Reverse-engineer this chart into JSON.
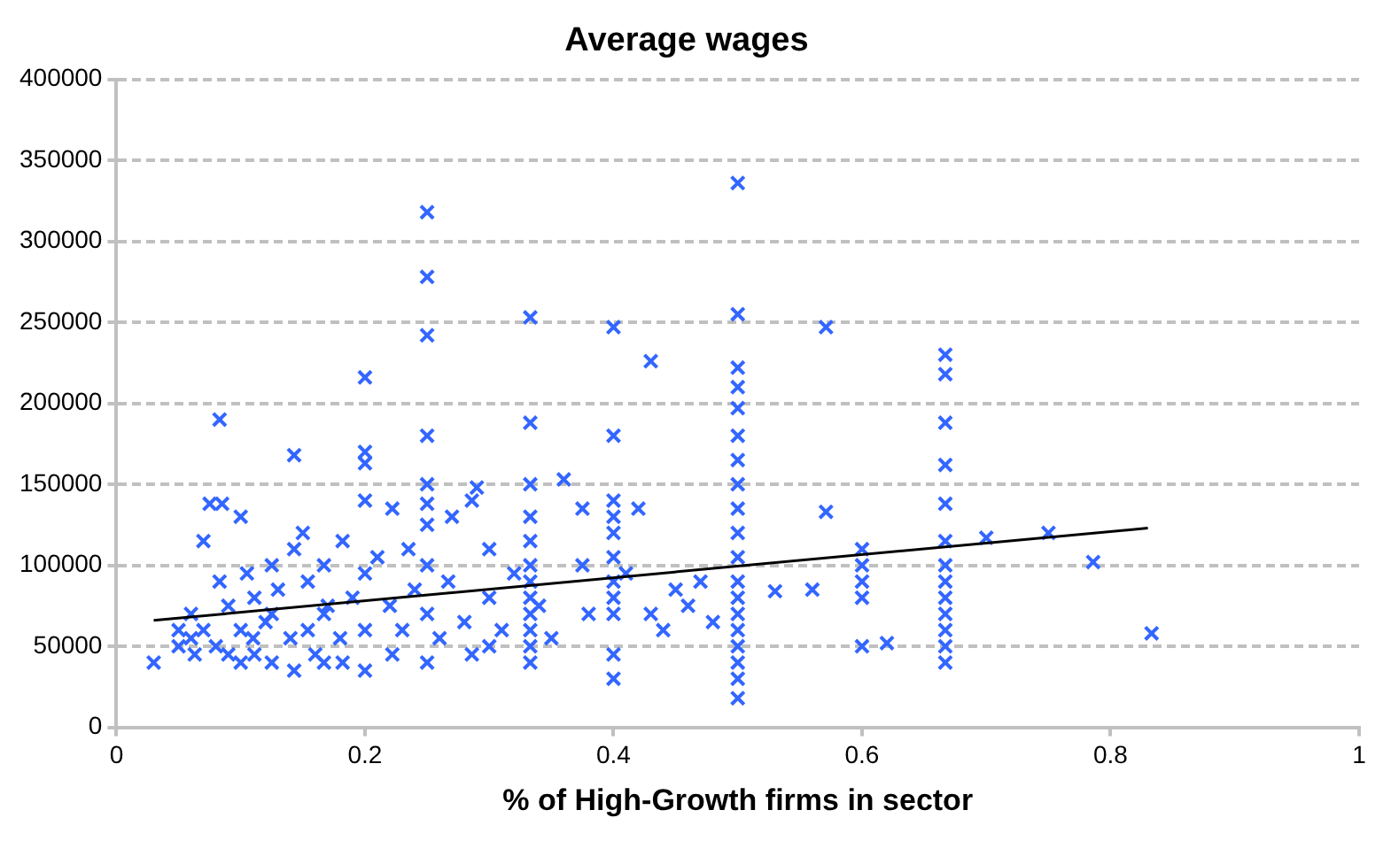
{
  "chart_data": {
    "type": "scatter",
    "title": "Average wages",
    "xlabel": "% of High-Growth firms in sector",
    "xlim": [
      0,
      1
    ],
    "xticks": [
      0,
      0.2,
      0.4,
      0.6,
      0.8,
      1
    ],
    "ylim": [
      0,
      400000
    ],
    "yticks": [
      0,
      50000,
      100000,
      150000,
      200000,
      250000,
      300000,
      350000,
      400000
    ],
    "grid": "y",
    "legend": false,
    "marker": "cross",
    "series": [
      {
        "color": "#3366ff",
        "x": [
          0.03,
          0.05,
          0.05,
          0.06,
          0.06,
          0.063,
          0.07,
          0.07,
          0.075,
          0.083,
          0.085,
          0.083,
          0.08,
          0.09,
          0.09,
          0.1,
          0.1,
          0.1,
          0.105,
          0.11,
          0.111,
          0.111,
          0.12,
          0.125,
          0.125,
          0.125,
          0.13,
          0.14,
          0.143,
          0.143,
          0.143,
          0.15,
          0.154,
          0.154,
          0.16,
          0.167,
          0.167,
          0.167,
          0.17,
          0.18,
          0.182,
          0.182,
          0.19,
          0.2,
          0.2,
          0.2,
          0.2,
          0.2,
          0.2,
          0.2,
          0.21,
          0.22,
          0.222,
          0.222,
          0.23,
          0.235,
          0.24,
          0.25,
          0.25,
          0.25,
          0.25,
          0.25,
          0.25,
          0.25,
          0.25,
          0.25,
          0.25,
          0.26,
          0.267,
          0.27,
          0.28,
          0.286,
          0.286,
          0.29,
          0.3,
          0.3,
          0.3,
          0.31,
          0.32,
          0.333,
          0.333,
          0.333,
          0.333,
          0.333,
          0.333,
          0.333,
          0.333,
          0.333,
          0.333,
          0.333,
          0.333,
          0.34,
          0.35,
          0.36,
          0.375,
          0.375,
          0.38,
          0.4,
          0.4,
          0.4,
          0.4,
          0.4,
          0.4,
          0.4,
          0.4,
          0.4,
          0.4,
          0.4,
          0.41,
          0.42,
          0.43,
          0.43,
          0.44,
          0.45,
          0.46,
          0.47,
          0.48,
          0.5,
          0.5,
          0.5,
          0.5,
          0.5,
          0.5,
          0.5,
          0.5,
          0.5,
          0.5,
          0.5,
          0.5,
          0.5,
          0.5,
          0.5,
          0.5,
          0.5,
          0.5,
          0.5,
          0.53,
          0.56,
          0.571,
          0.571,
          0.6,
          0.6,
          0.6,
          0.6,
          0.6,
          0.62,
          0.667,
          0.667,
          0.667,
          0.667,
          0.667,
          0.667,
          0.667,
          0.667,
          0.667,
          0.667,
          0.667,
          0.667,
          0.667,
          0.7,
          0.75,
          0.786,
          0.833
        ],
        "values": [
          40000,
          60000,
          50000,
          55000,
          70000,
          45000,
          115000,
          60000,
          138000,
          190000,
          138000,
          90000,
          50000,
          75000,
          45000,
          60000,
          130000,
          40000,
          95000,
          55000,
          80000,
          45000,
          65000,
          100000,
          70000,
          40000,
          85000,
          55000,
          168000,
          110000,
          35000,
          120000,
          60000,
          90000,
          45000,
          100000,
          70000,
          40000,
          75000,
          55000,
          115000,
          40000,
          80000,
          216000,
          170000,
          163000,
          140000,
          95000,
          60000,
          35000,
          105000,
          75000,
          135000,
          45000,
          60000,
          110000,
          85000,
          318000,
          278000,
          242000,
          180000,
          150000,
          138000,
          125000,
          100000,
          70000,
          40000,
          55000,
          90000,
          130000,
          65000,
          140000,
          45000,
          148000,
          110000,
          80000,
          50000,
          60000,
          95000,
          253000,
          188000,
          150000,
          130000,
          115000,
          100000,
          90000,
          80000,
          70000,
          60000,
          50000,
          40000,
          75000,
          55000,
          153000,
          135000,
          100000,
          70000,
          247000,
          180000,
          140000,
          130000,
          120000,
          105000,
          90000,
          80000,
          70000,
          45000,
          30000,
          95000,
          135000,
          226000,
          70000,
          60000,
          85000,
          75000,
          90000,
          65000,
          336000,
          255000,
          222000,
          210000,
          197000,
          180000,
          165000,
          150000,
          135000,
          120000,
          105000,
          90000,
          80000,
          70000,
          60000,
          50000,
          40000,
          30000,
          18000,
          84000,
          85000,
          247000,
          133000,
          110000,
          100000,
          90000,
          80000,
          50000,
          52000,
          230000,
          218000,
          188000,
          162000,
          138000,
          115000,
          100000,
          90000,
          80000,
          70000,
          60000,
          50000,
          40000,
          117000,
          120000,
          102000,
          58000
        ]
      },
      {
        "type": "line",
        "color": "#000000",
        "marker": "none",
        "x": [
          0.03,
          0.83
        ],
        "values": [
          66000,
          123000
        ]
      }
    ]
  }
}
